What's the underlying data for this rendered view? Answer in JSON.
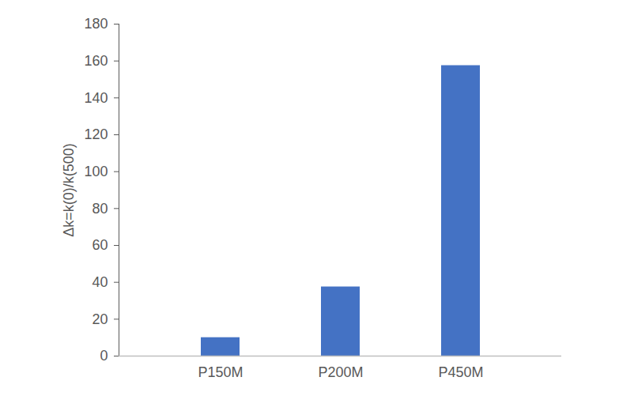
{
  "chart_data": {
    "type": "bar",
    "y_label": "Δk=k(0)/k(500)",
    "categories": [
      "P150M",
      "P200M",
      "P450M"
    ],
    "values": [
      10,
      37.5,
      157.5
    ],
    "color": "#4472c4",
    "ylim": [
      0,
      180
    ],
    "yticks": [
      0,
      20,
      40,
      60,
      80,
      100,
      120,
      140,
      160,
      180
    ],
    "grid": false
  }
}
